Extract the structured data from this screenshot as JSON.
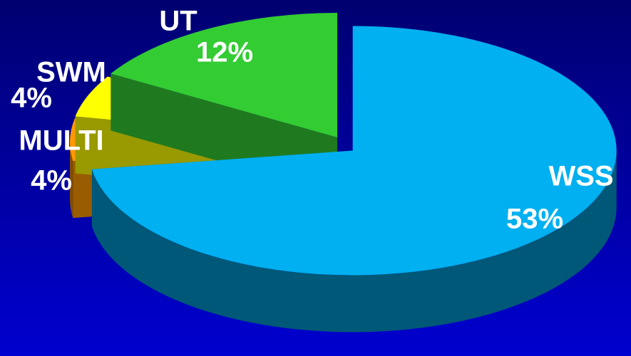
{
  "chart_data": {
    "type": "pie",
    "categories": [
      "WSS",
      "MULTI",
      "SWM",
      "UT"
    ],
    "values": [
      53,
      4,
      4,
      12
    ],
    "value_labels": [
      "53%",
      "4%",
      "4%",
      "12%"
    ],
    "colors": [
      "#00b0f0",
      "#ff9900",
      "#ffff00",
      "#33cc33"
    ]
  }
}
